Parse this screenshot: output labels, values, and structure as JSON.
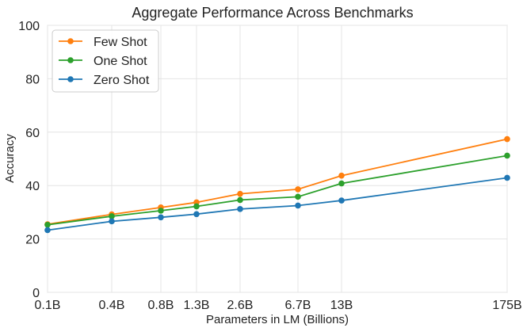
{
  "chart_data": {
    "type": "line",
    "title": "Aggregate Performance Across Benchmarks",
    "xlabel": "Parameters in LM (Billions)",
    "ylabel": "Accuracy",
    "categories": [
      "0.1B",
      "0.4B",
      "0.8B",
      "1.3B",
      "2.6B",
      "6.7B",
      "13B",
      "175B"
    ],
    "ylim": [
      0,
      100
    ],
    "yticks": [
      0,
      20,
      40,
      60,
      80,
      100
    ],
    "grid": true,
    "legend_position": "top-left",
    "series": [
      {
        "name": "Few Shot",
        "color": "#ff7f0e",
        "values": [
          25.5,
          29.2,
          31.8,
          33.7,
          36.9,
          38.6,
          43.7,
          57.4
        ]
      },
      {
        "name": "One Shot",
        "color": "#2ca02c",
        "values": [
          25.3,
          28.5,
          30.6,
          32.2,
          34.6,
          35.8,
          40.8,
          51.2
        ]
      },
      {
        "name": "Zero Shot",
        "color": "#1f77b4",
        "values": [
          23.3,
          26.6,
          28.1,
          29.3,
          31.2,
          32.5,
          34.4,
          42.9
        ]
      }
    ],
    "background_series_note": "Faint individual benchmark lines in orange, green and blue shades",
    "background_colors": [
      "#ff7f0e",
      "#2ca02c",
      "#1f77b4"
    ]
  }
}
